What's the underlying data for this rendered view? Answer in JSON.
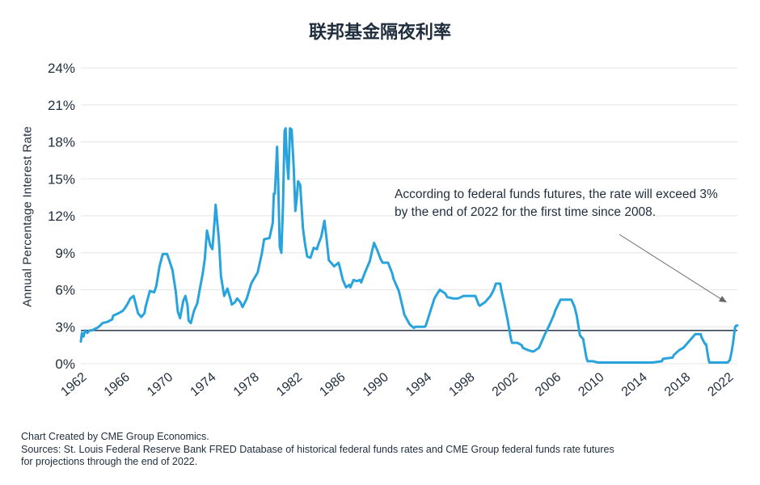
{
  "chart_data": {
    "type": "line",
    "title": "联邦基金隔夜利率",
    "ylabel": "Annual Percentage Interest Rate",
    "xlabel": "",
    "xlim": [
      1962,
      2022.9
    ],
    "ylim": [
      0,
      24
    ],
    "y_ticks": [
      "0%",
      "3%",
      "6%",
      "9%",
      "12%",
      "15%",
      "18%",
      "21%",
      "24%"
    ],
    "x_ticks": [
      "1962",
      "1966",
      "1970",
      "1974",
      "1978",
      "1982",
      "1986",
      "1990",
      "1994",
      "1998",
      "2002",
      "2006",
      "2010",
      "2014",
      "2018",
      "2022"
    ],
    "grid": "horizontal",
    "reference_line_value": 2.7,
    "annotation": "According to federal funds futures, the rate will exceed 3% by the end of 2022 for the first time since 2008.",
    "series": [
      {
        "color": "#29a3dc",
        "points": [
          [
            1962.0,
            1.8
          ],
          [
            1962.1,
            2.5
          ],
          [
            1962.25,
            2.2
          ],
          [
            1962.4,
            2.7
          ],
          [
            1962.6,
            2.5
          ],
          [
            1962.8,
            2.7
          ],
          [
            1963.0,
            2.7
          ],
          [
            1963.5,
            2.9
          ],
          [
            1963.8,
            3.1
          ],
          [
            1964.0,
            3.3
          ],
          [
            1964.5,
            3.4
          ],
          [
            1964.9,
            3.6
          ],
          [
            1965.0,
            3.9
          ],
          [
            1965.5,
            4.1
          ],
          [
            1965.9,
            4.3
          ],
          [
            1966.0,
            4.4
          ],
          [
            1966.3,
            4.8
          ],
          [
            1966.6,
            5.3
          ],
          [
            1966.9,
            5.5
          ],
          [
            1967.1,
            4.8
          ],
          [
            1967.3,
            4.1
          ],
          [
            1967.6,
            3.8
          ],
          [
            1967.9,
            4.1
          ],
          [
            1968.0,
            4.6
          ],
          [
            1968.4,
            5.9
          ],
          [
            1968.8,
            5.8
          ],
          [
            1969.0,
            6.3
          ],
          [
            1969.3,
            7.9
          ],
          [
            1969.6,
            8.9
          ],
          [
            1969.9,
            8.9
          ],
          [
            1970.0,
            8.9
          ],
          [
            1970.2,
            8.4
          ],
          [
            1970.5,
            7.6
          ],
          [
            1970.8,
            5.9
          ],
          [
            1971.0,
            4.2
          ],
          [
            1971.2,
            3.7
          ],
          [
            1971.5,
            5.1
          ],
          [
            1971.7,
            5.5
          ],
          [
            1971.9,
            4.7
          ],
          [
            1972.0,
            3.5
          ],
          [
            1972.2,
            3.3
          ],
          [
            1972.5,
            4.3
          ],
          [
            1972.8,
            4.9
          ],
          [
            1973.0,
            5.9
          ],
          [
            1973.3,
            7.3
          ],
          [
            1973.5,
            8.5
          ],
          [
            1973.7,
            10.8
          ],
          [
            1973.9,
            10.0
          ],
          [
            1974.0,
            9.6
          ],
          [
            1974.2,
            9.3
          ],
          [
            1974.4,
            11.5
          ],
          [
            1974.5,
            12.9
          ],
          [
            1974.6,
            12.0
          ],
          [
            1974.8,
            10.1
          ],
          [
            1975.0,
            7.1
          ],
          [
            1975.3,
            5.5
          ],
          [
            1975.6,
            6.1
          ],
          [
            1975.9,
            5.2
          ],
          [
            1976.0,
            4.8
          ],
          [
            1976.3,
            5.0
          ],
          [
            1976.5,
            5.3
          ],
          [
            1976.8,
            5.0
          ],
          [
            1977.0,
            4.6
          ],
          [
            1977.4,
            5.3
          ],
          [
            1977.8,
            6.5
          ],
          [
            1978.0,
            6.8
          ],
          [
            1978.4,
            7.4
          ],
          [
            1978.8,
            9.0
          ],
          [
            1979.0,
            10.1
          ],
          [
            1979.5,
            10.2
          ],
          [
            1979.8,
            11.4
          ],
          [
            1979.9,
            13.8
          ],
          [
            1980.0,
            13.8
          ],
          [
            1980.2,
            17.6
          ],
          [
            1980.3,
            15.0
          ],
          [
            1980.45,
            9.5
          ],
          [
            1980.6,
            9.0
          ],
          [
            1980.75,
            12.8
          ],
          [
            1980.9,
            18.9
          ],
          [
            1981.0,
            19.1
          ],
          [
            1981.1,
            16.6
          ],
          [
            1981.25,
            15.0
          ],
          [
            1981.4,
            19.1
          ],
          [
            1981.55,
            19.0
          ],
          [
            1981.75,
            15.9
          ],
          [
            1981.9,
            12.4
          ],
          [
            1982.0,
            13.2
          ],
          [
            1982.15,
            14.8
          ],
          [
            1982.35,
            14.5
          ],
          [
            1982.6,
            11.0
          ],
          [
            1982.8,
            9.7
          ],
          [
            1983.0,
            8.7
          ],
          [
            1983.3,
            8.6
          ],
          [
            1983.6,
            9.4
          ],
          [
            1983.9,
            9.3
          ],
          [
            1984.0,
            9.6
          ],
          [
            1984.3,
            10.3
          ],
          [
            1984.6,
            11.6
          ],
          [
            1984.8,
            10.1
          ],
          [
            1985.0,
            8.4
          ],
          [
            1985.5,
            7.9
          ],
          [
            1985.9,
            8.2
          ],
          [
            1986.0,
            7.9
          ],
          [
            1986.3,
            6.8
          ],
          [
            1986.6,
            6.2
          ],
          [
            1986.9,
            6.4
          ],
          [
            1987.0,
            6.2
          ],
          [
            1987.3,
            6.8
          ],
          [
            1987.6,
            6.7
          ],
          [
            1987.9,
            6.8
          ],
          [
            1988.0,
            6.6
          ],
          [
            1988.4,
            7.5
          ],
          [
            1988.8,
            8.3
          ],
          [
            1989.0,
            9.1
          ],
          [
            1989.2,
            9.8
          ],
          [
            1989.5,
            9.2
          ],
          [
            1989.8,
            8.5
          ],
          [
            1990.0,
            8.2
          ],
          [
            1990.5,
            8.2
          ],
          [
            1990.9,
            7.3
          ],
          [
            1991.0,
            6.9
          ],
          [
            1991.5,
            5.9
          ],
          [
            1991.9,
            4.4
          ],
          [
            1992.0,
            4.0
          ],
          [
            1992.5,
            3.2
          ],
          [
            1992.9,
            2.9
          ],
          [
            1993.0,
            3.0
          ],
          [
            1993.5,
            3.0
          ],
          [
            1993.9,
            3.0
          ],
          [
            1994.0,
            3.1
          ],
          [
            1994.4,
            4.2
          ],
          [
            1994.8,
            5.3
          ],
          [
            1995.0,
            5.6
          ],
          [
            1995.3,
            6.0
          ],
          [
            1995.8,
            5.7
          ],
          [
            1996.0,
            5.4
          ],
          [
            1996.5,
            5.3
          ],
          [
            1997.0,
            5.3
          ],
          [
            1997.5,
            5.5
          ],
          [
            1998.0,
            5.5
          ],
          [
            1998.6,
            5.5
          ],
          [
            1998.9,
            4.8
          ],
          [
            1999.0,
            4.7
          ],
          [
            1999.5,
            5.0
          ],
          [
            1999.9,
            5.4
          ],
          [
            2000.0,
            5.5
          ],
          [
            2000.3,
            6.0
          ],
          [
            2000.5,
            6.5
          ],
          [
            2000.9,
            6.5
          ],
          [
            2001.0,
            6.0
          ],
          [
            2001.3,
            4.8
          ],
          [
            2001.6,
            3.5
          ],
          [
            2001.9,
            2.0
          ],
          [
            2002.0,
            1.7
          ],
          [
            2002.5,
            1.7
          ],
          [
            2002.9,
            1.5
          ],
          [
            2003.0,
            1.3
          ],
          [
            2003.5,
            1.1
          ],
          [
            2003.9,
            1.0
          ],
          [
            2004.0,
            1.0
          ],
          [
            2004.5,
            1.3
          ],
          [
            2004.9,
            2.1
          ],
          [
            2005.0,
            2.3
          ],
          [
            2005.5,
            3.2
          ],
          [
            2005.9,
            4.0
          ],
          [
            2006.0,
            4.3
          ],
          [
            2006.5,
            5.2
          ],
          [
            2007.0,
            5.2
          ],
          [
            2007.5,
            5.2
          ],
          [
            2007.8,
            4.6
          ],
          [
            2008.0,
            3.9
          ],
          [
            2008.3,
            2.3
          ],
          [
            2008.6,
            2.0
          ],
          [
            2008.9,
            0.5
          ],
          [
            2009.0,
            0.2
          ],
          [
            2009.5,
            0.2
          ],
          [
            2010.0,
            0.1
          ],
          [
            2011.0,
            0.1
          ],
          [
            2012.0,
            0.1
          ],
          [
            2013.0,
            0.1
          ],
          [
            2014.0,
            0.1
          ],
          [
            2015.0,
            0.1
          ],
          [
            2015.9,
            0.2
          ],
          [
            2016.0,
            0.4
          ],
          [
            2016.9,
            0.5
          ],
          [
            2017.0,
            0.7
          ],
          [
            2017.5,
            1.1
          ],
          [
            2017.9,
            1.3
          ],
          [
            2018.0,
            1.4
          ],
          [
            2018.5,
            1.9
          ],
          [
            2018.9,
            2.3
          ],
          [
            2019.0,
            2.4
          ],
          [
            2019.5,
            2.4
          ],
          [
            2019.6,
            2.1
          ],
          [
            2019.9,
            1.6
          ],
          [
            2020.0,
            1.6
          ],
          [
            2020.2,
            0.5
          ],
          [
            2020.3,
            0.1
          ],
          [
            2020.5,
            0.1
          ],
          [
            2021.0,
            0.1
          ],
          [
            2021.5,
            0.1
          ],
          [
            2021.9,
            0.1
          ],
          [
            2022.0,
            0.1
          ],
          [
            2022.2,
            0.3
          ],
          [
            2022.35,
            0.9
          ],
          [
            2022.5,
            1.7
          ],
          [
            2022.6,
            2.4
          ],
          [
            2022.7,
            3.0
          ],
          [
            2022.8,
            3.1
          ],
          [
            2022.9,
            3.1
          ]
        ]
      }
    ]
  },
  "footer": {
    "credit": "Chart Created by CME Group Economics.",
    "sources_line1": "Sources:  St. Louis Federal Reserve Bank FRED Database of historical federal funds rates and CME Group federal funds rate futures",
    "sources_line2": "for projections through the end of 2022."
  },
  "colors": {
    "line": "#29a3dc",
    "reference_line": "#3b4654",
    "grid": "#e6e6e6",
    "text": "#1f2d3d"
  }
}
